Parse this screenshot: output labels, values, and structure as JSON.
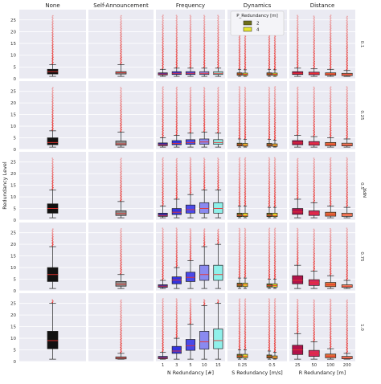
{
  "chart_data": {
    "type": "box",
    "facet_rows_label": "MPR",
    "facet_rows": [
      "0.1",
      "0.25",
      "0.5",
      "0.75",
      "1.0"
    ],
    "y_axis_label": "Redundancy Level",
    "ylim": [
      0,
      28
    ],
    "yticks": [
      0,
      5,
      10,
      15,
      20,
      25
    ],
    "grid": true,
    "columns": [
      {
        "title": "None",
        "xlabel": "",
        "groups": [
          {
            "label": "",
            "color": "#111111",
            "hues": 1
          }
        ]
      },
      {
        "title": "Self-Announcement",
        "xlabel": "",
        "groups": [
          {
            "label": "",
            "color": "#8a8a8a",
            "hues": 1
          }
        ]
      },
      {
        "title": "Frequency",
        "xlabel": "N Redundancy [#]",
        "groups": [
          {
            "label": "1",
            "color": "#2b2ba8",
            "hues": 1
          },
          {
            "label": "3",
            "color": "#3333dd",
            "hues": 1
          },
          {
            "label": "5",
            "color": "#4a4ae8",
            "hues": 1
          },
          {
            "label": "10",
            "color": "#8a8af0",
            "hues": 1
          },
          {
            "label": "15",
            "color": "#8ff0ea",
            "hues": 1
          }
        ]
      },
      {
        "title": "Dynamics",
        "xlabel": "S Redundancy [m/s]",
        "hue_colors": [
          "#6f6f1a",
          "#e6e62e"
        ],
        "groups": [
          {
            "label": "0.25",
            "hues": 2
          },
          {
            "label": "0.5",
            "hues": 2
          }
        ]
      },
      {
        "title": "Distance",
        "xlabel": "R Redundancy [m]",
        "groups": [
          {
            "label": "25",
            "color": "#b0124a",
            "hues": 1
          },
          {
            "label": "50",
            "color": "#d8285a",
            "hues": 1
          },
          {
            "label": "100",
            "color": "#e0703a",
            "hues": 1
          },
          {
            "label": "200",
            "color": "#f0956a",
            "hues": 1
          }
        ]
      }
    ],
    "legend": {
      "title": "P_Redundancy [m]",
      "entries": [
        "2",
        "4"
      ],
      "position": "top, inside Dynamics column"
    },
    "box_stats_by_row": [
      {
        "None": [
          [
            1,
            2,
            3,
            4,
            6
          ]
        ],
        "Self-Announcement": [
          [
            1,
            2,
            2.5,
            3,
            6
          ]
        ],
        "Frequency": [
          [
            1,
            1.6,
            2,
            2.5,
            4
          ],
          [
            1,
            1.8,
            2.3,
            3,
            4.5
          ],
          [
            1,
            1.8,
            2.3,
            3,
            4.5
          ],
          [
            1,
            1.8,
            2.3,
            3,
            4.5
          ],
          [
            1,
            1.8,
            2.3,
            3,
            4.5
          ]
        ],
        "Dynamics": [
          [
            [
              1,
              1.5,
              2,
              2.5,
              4
            ],
            [
              1,
              1.4,
              1.9,
              2.4,
              3.8
            ]
          ],
          [
            [
              1,
              1.5,
              2,
              2.5,
              4
            ],
            [
              1,
              1.4,
              1.9,
              2.4,
              3.8
            ]
          ]
        ],
        "Distance": [
          [
            1,
            1.8,
            2.3,
            3,
            4.5
          ],
          [
            1,
            1.7,
            2.2,
            2.8,
            4.2
          ],
          [
            1,
            1.5,
            2,
            2.5,
            4
          ],
          [
            1,
            1.3,
            1.8,
            2.3,
            3.5
          ]
        ]
      },
      {
        "None": [
          [
            1,
            2,
            3,
            5,
            8
          ]
        ],
        "Self-Announcement": [
          [
            1,
            1.8,
            2.4,
            3.6,
            7.5
          ]
        ],
        "Frequency": [
          [
            1,
            1.6,
            2,
            2.8,
            5
          ],
          [
            1,
            2,
            2.6,
            3.8,
            6
          ],
          [
            1,
            2.2,
            3,
            4.2,
            7
          ],
          [
            1,
            2.2,
            3.2,
            4.5,
            7.5
          ],
          [
            1,
            2.2,
            3,
            4.2,
            7
          ]
        ],
        "Dynamics": [
          [
            [
              1,
              1.5,
              2,
              2.7,
              4.5
            ],
            [
              1,
              1.4,
              1.9,
              2.6,
              4.3
            ]
          ],
          [
            [
              1,
              1.4,
              1.9,
              2.6,
              4.3
            ],
            [
              1,
              1.3,
              1.8,
              2.4,
              4
            ]
          ]
        ],
        "Distance": [
          [
            1,
            2,
            2.8,
            3.8,
            6
          ],
          [
            1,
            1.8,
            2.5,
            3.4,
            5.5
          ],
          [
            1,
            1.6,
            2.2,
            3,
            5
          ],
          [
            1,
            1.5,
            2,
            2.7,
            4.5
          ]
        ]
      },
      {
        "None": [
          [
            1,
            3,
            5,
            7,
            13
          ]
        ],
        "Self-Announcement": [
          [
            1,
            2,
            2.8,
            4,
            8
          ]
        ],
        "Frequency": [
          [
            1,
            1.6,
            2,
            3,
            6
          ],
          [
            1,
            2.4,
            3.4,
            5,
            9
          ],
          [
            1,
            3,
            4.5,
            6.5,
            11
          ],
          [
            1,
            3,
            5,
            7.5,
            13
          ],
          [
            1,
            3,
            5,
            7.5,
            13
          ]
        ],
        "Dynamics": [
          [
            [
              1,
              1.5,
              2,
              3,
              6
            ],
            [
              1,
              1.5,
              2,
              3,
              6
            ]
          ],
          [
            [
              1,
              1.5,
              2,
              3,
              5.5
            ],
            [
              1,
              1.5,
              2,
              3,
              5.5
            ]
          ]
        ],
        "Distance": [
          [
            1,
            2.5,
            3.5,
            5,
            9
          ],
          [
            1,
            2,
            3,
            4,
            7.5
          ],
          [
            1,
            1.7,
            2.4,
            3.4,
            6
          ],
          [
            1,
            1.6,
            2.2,
            3,
            5.5
          ]
        ]
      },
      {
        "None": [
          [
            1,
            4,
            7,
            10,
            19
          ]
        ],
        "Self-Announcement": [
          [
            1,
            2,
            2.8,
            4,
            7
          ]
        ],
        "Frequency": [
          [
            1,
            1.5,
            2,
            2.6,
            4.5
          ],
          [
            1,
            3,
            4.6,
            6,
            10
          ],
          [
            1,
            4,
            5.8,
            8,
            13
          ],
          [
            1,
            4.5,
            7,
            11,
            19
          ],
          [
            1,
            4.5,
            7,
            11,
            20
          ]
        ],
        "Dynamics": [
          [
            [
              1,
              1.8,
              2.5,
              3.3,
              5.5
            ],
            [
              1,
              1.8,
              2.5,
              3.3,
              5.5
            ]
          ],
          [
            [
              1,
              1.6,
              2.2,
              3,
              5
            ],
            [
              1,
              1.6,
              2.2,
              3,
              5
            ]
          ]
        ],
        "Distance": [
          [
            1,
            3,
            4.5,
            6.5,
            11
          ],
          [
            1,
            2.3,
            3.5,
            4.8,
            8.5
          ],
          [
            1,
            1.8,
            2.6,
            3.6,
            6.5
          ],
          [
            1,
            1.5,
            2,
            2.6,
            4.5
          ]
        ]
      },
      {
        "None": [
          [
            1,
            5.5,
            9,
            13,
            25
          ]
        ],
        "Self-Announcement": [
          [
            1,
            1.1,
            1.5,
            2,
            3.5
          ]
        ],
        "Frequency": [
          [
            1,
            1.2,
            1.5,
            2.2,
            4
          ],
          [
            1,
            3.5,
            4.5,
            6.5,
            10
          ],
          [
            1,
            4.8,
            6.8,
            9.5,
            16
          ],
          [
            1,
            5.3,
            8.5,
            13,
            24
          ],
          [
            1,
            5.5,
            9,
            14,
            25
          ]
        ],
        "Dynamics": [
          [
            [
              1,
              1.6,
              2.3,
              3.1,
              5
            ],
            [
              1,
              1.6,
              2.3,
              3.1,
              5
            ]
          ],
          [
            [
              1,
              1.5,
              2.1,
              2.8,
              4.5
            ],
            [
              1,
              1.3,
              1.8,
              2.4,
              4
            ]
          ]
        ],
        "Distance": [
          [
            1,
            3,
            5,
            7,
            12
          ],
          [
            1,
            2.2,
            3.5,
            4.8,
            8.5
          ],
          [
            1,
            1.6,
            2.3,
            3.2,
            5.5
          ],
          [
            1,
            1.2,
            1.6,
            2.2,
            3.5
          ]
        ]
      }
    ]
  }
}
